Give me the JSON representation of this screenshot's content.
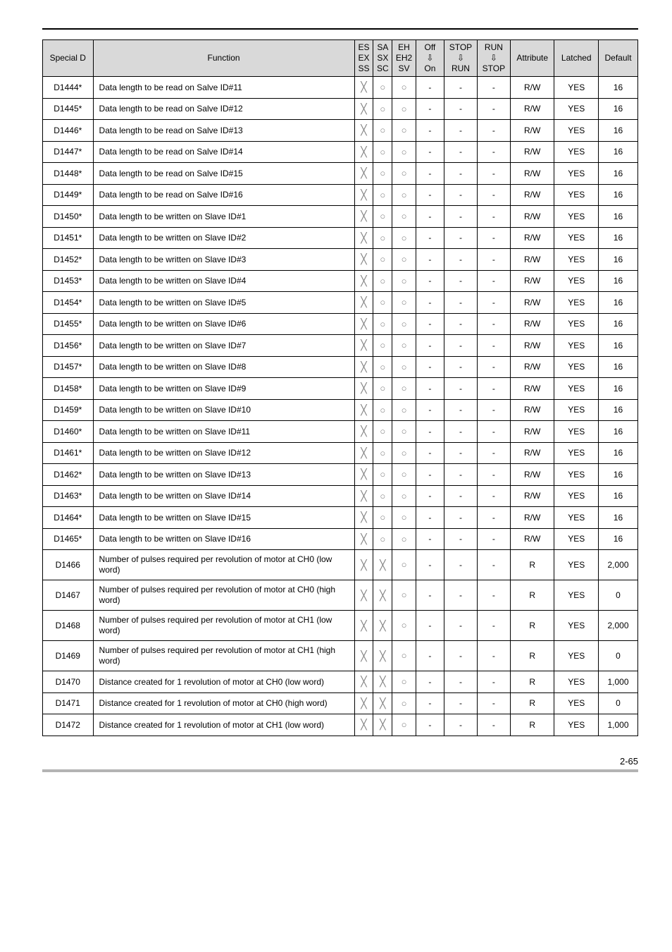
{
  "page_number": "2-65",
  "header": {
    "special_d": "Special D",
    "function": "Function",
    "col_es": {
      "l1": "ES",
      "l2": "EX",
      "l3": "SS"
    },
    "col_sa": {
      "l1": "SA",
      "l2": "SX",
      "l3": "SC"
    },
    "col_eh": {
      "l1": "EH",
      "l2": "EH2",
      "l3": "SV"
    },
    "col_off": {
      "l1": "Off",
      "l2": "⇩",
      "l3": "On"
    },
    "col_stop": {
      "l1": "STOP",
      "l2": "⇩",
      "l3": "RUN"
    },
    "col_run": {
      "l1": "RUN",
      "l2": "⇩",
      "l3": "STOP"
    },
    "attribute": "Attribute",
    "latched": "Latched",
    "default": "Default"
  },
  "marks": {
    "x": "╳",
    "o": "○",
    "dash": "-"
  },
  "rows": [
    {
      "sd": "D1444*",
      "func": "Data length to be read on Salve ID#11",
      "es": "x",
      "sa": "o",
      "eh": "o",
      "off": "-",
      "stop": "-",
      "run": "-",
      "attr": "R/W",
      "latched": "YES",
      "def": "16"
    },
    {
      "sd": "D1445*",
      "func": "Data length to be read on Salve ID#12",
      "es": "x",
      "sa": "o",
      "eh": "o",
      "off": "-",
      "stop": "-",
      "run": "-",
      "attr": "R/W",
      "latched": "YES",
      "def": "16"
    },
    {
      "sd": "D1446*",
      "func": "Data length to be read on Salve ID#13",
      "es": "x",
      "sa": "o",
      "eh": "o",
      "off": "-",
      "stop": "-",
      "run": "-",
      "attr": "R/W",
      "latched": "YES",
      "def": "16"
    },
    {
      "sd": "D1447*",
      "func": "Data length to be read on Salve ID#14",
      "es": "x",
      "sa": "o",
      "eh": "o",
      "off": "-",
      "stop": "-",
      "run": "-",
      "attr": "R/W",
      "latched": "YES",
      "def": "16"
    },
    {
      "sd": "D1448*",
      "func": "Data length to be read on Salve ID#15",
      "es": "x",
      "sa": "o",
      "eh": "o",
      "off": "-",
      "stop": "-",
      "run": "-",
      "attr": "R/W",
      "latched": "YES",
      "def": "16"
    },
    {
      "sd": "D1449*",
      "func": "Data length to be read on Salve ID#16",
      "es": "x",
      "sa": "o",
      "eh": "o",
      "off": "-",
      "stop": "-",
      "run": "-",
      "attr": "R/W",
      "latched": "YES",
      "def": "16"
    },
    {
      "sd": "D1450*",
      "func": "Data length to be written on Slave ID#1",
      "es": "x",
      "sa": "o",
      "eh": "o",
      "off": "-",
      "stop": "-",
      "run": "-",
      "attr": "R/W",
      "latched": "YES",
      "def": "16"
    },
    {
      "sd": "D1451*",
      "func": "Data length to be written on Slave ID#2",
      "es": "x",
      "sa": "o",
      "eh": "o",
      "off": "-",
      "stop": "-",
      "run": "-",
      "attr": "R/W",
      "latched": "YES",
      "def": "16"
    },
    {
      "sd": "D1452*",
      "func": "Data length to be written on Slave ID#3",
      "es": "x",
      "sa": "o",
      "eh": "o",
      "off": "-",
      "stop": "-",
      "run": "-",
      "attr": "R/W",
      "latched": "YES",
      "def": "16"
    },
    {
      "sd": "D1453*",
      "func": "Data length to be written on Slave ID#4",
      "es": "x",
      "sa": "o",
      "eh": "o",
      "off": "-",
      "stop": "-",
      "run": "-",
      "attr": "R/W",
      "latched": "YES",
      "def": "16"
    },
    {
      "sd": "D1454*",
      "func": "Data length to be written on Slave ID#5",
      "es": "x",
      "sa": "o",
      "eh": "o",
      "off": "-",
      "stop": "-",
      "run": "-",
      "attr": "R/W",
      "latched": "YES",
      "def": "16"
    },
    {
      "sd": "D1455*",
      "func": "Data length to be written on Slave ID#6",
      "es": "x",
      "sa": "o",
      "eh": "o",
      "off": "-",
      "stop": "-",
      "run": "-",
      "attr": "R/W",
      "latched": "YES",
      "def": "16"
    },
    {
      "sd": "D1456*",
      "func": "Data length to be written on Slave ID#7",
      "es": "x",
      "sa": "o",
      "eh": "o",
      "off": "-",
      "stop": "-",
      "run": "-",
      "attr": "R/W",
      "latched": "YES",
      "def": "16"
    },
    {
      "sd": "D1457*",
      "func": "Data length to be written on Slave ID#8",
      "es": "x",
      "sa": "o",
      "eh": "o",
      "off": "-",
      "stop": "-",
      "run": "-",
      "attr": "R/W",
      "latched": "YES",
      "def": "16"
    },
    {
      "sd": "D1458*",
      "func": "Data length to be written on Slave ID#9",
      "es": "x",
      "sa": "o",
      "eh": "o",
      "off": "-",
      "stop": "-",
      "run": "-",
      "attr": "R/W",
      "latched": "YES",
      "def": "16"
    },
    {
      "sd": "D1459*",
      "func": "Data length to be written on Slave ID#10",
      "es": "x",
      "sa": "o",
      "eh": "o",
      "off": "-",
      "stop": "-",
      "run": "-",
      "attr": "R/W",
      "latched": "YES",
      "def": "16"
    },
    {
      "sd": "D1460*",
      "func": "Data length to be written on Slave ID#11",
      "es": "x",
      "sa": "o",
      "eh": "o",
      "off": "-",
      "stop": "-",
      "run": "-",
      "attr": "R/W",
      "latched": "YES",
      "def": "16"
    },
    {
      "sd": "D1461*",
      "func": "Data length to be written on Slave ID#12",
      "es": "x",
      "sa": "o",
      "eh": "o",
      "off": "-",
      "stop": "-",
      "run": "-",
      "attr": "R/W",
      "latched": "YES",
      "def": "16"
    },
    {
      "sd": "D1462*",
      "func": "Data length to be written on Slave ID#13",
      "es": "x",
      "sa": "o",
      "eh": "o",
      "off": "-",
      "stop": "-",
      "run": "-",
      "attr": "R/W",
      "latched": "YES",
      "def": "16"
    },
    {
      "sd": "D1463*",
      "func": "Data length to be written on Slave ID#14",
      "es": "x",
      "sa": "o",
      "eh": "o",
      "off": "-",
      "stop": "-",
      "run": "-",
      "attr": "R/W",
      "latched": "YES",
      "def": "16"
    },
    {
      "sd": "D1464*",
      "func": "Data length to be written on Slave ID#15",
      "es": "x",
      "sa": "o",
      "eh": "o",
      "off": "-",
      "stop": "-",
      "run": "-",
      "attr": "R/W",
      "latched": "YES",
      "def": "16"
    },
    {
      "sd": "D1465*",
      "func": "Data length to be written on Slave ID#16",
      "es": "x",
      "sa": "o",
      "eh": "o",
      "off": "-",
      "stop": "-",
      "run": "-",
      "attr": "R/W",
      "latched": "YES",
      "def": "16"
    },
    {
      "sd": "D1466",
      "func": "Number of pulses required per revolution of motor at CH0 (low word)",
      "es": "x",
      "sa": "x",
      "eh": "o",
      "off": "-",
      "stop": "-",
      "run": "-",
      "attr": "R",
      "latched": "YES",
      "def": "2,000"
    },
    {
      "sd": "D1467",
      "func": "Number of pulses required per revolution of motor at CH0 (high word)",
      "es": "x",
      "sa": "x",
      "eh": "o",
      "off": "-",
      "stop": "-",
      "run": "-",
      "attr": "R",
      "latched": "YES",
      "def": "0"
    },
    {
      "sd": "D1468",
      "func": "Number of pulses required per revolution of motor at CH1 (low word)",
      "es": "x",
      "sa": "x",
      "eh": "o",
      "off": "-",
      "stop": "-",
      "run": "-",
      "attr": "R",
      "latched": "YES",
      "def": "2,000"
    },
    {
      "sd": "D1469",
      "func": "Number of pulses required per revolution of motor at CH1 (high word)",
      "es": "x",
      "sa": "x",
      "eh": "o",
      "off": "-",
      "stop": "-",
      "run": "-",
      "attr": "R",
      "latched": "YES",
      "def": "0"
    },
    {
      "sd": "D1470",
      "func": "Distance created for 1 revolution of motor at CH0 (low word)",
      "es": "x",
      "sa": "x",
      "eh": "o",
      "off": "-",
      "stop": "-",
      "run": "-",
      "attr": "R",
      "latched": "YES",
      "def": "1,000"
    },
    {
      "sd": "D1471",
      "func": "Distance created for 1 revolution of motor at CH0 (high word)",
      "es": "x",
      "sa": "x",
      "eh": "o",
      "off": "-",
      "stop": "-",
      "run": "-",
      "attr": "R",
      "latched": "YES",
      "def": "0"
    },
    {
      "sd": "D1472",
      "func": "Distance created for 1 revolution of motor at CH1 (low word)",
      "es": "x",
      "sa": "x",
      "eh": "o",
      "off": "-",
      "stop": "-",
      "run": "-",
      "attr": "R",
      "latched": "YES",
      "def": "1,000"
    }
  ]
}
